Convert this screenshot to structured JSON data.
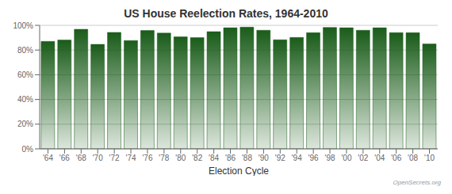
{
  "chart_data": {
    "type": "bar",
    "title": "US House Reelection Rates, 1964-2010",
    "xlabel": "Election Cycle",
    "categories": [
      "'64",
      "'66",
      "'68",
      "'70",
      "'72",
      "'74",
      "'76",
      "'78",
      "'80",
      "'82",
      "'84",
      "'86",
      "'88",
      "'90",
      "'92",
      "'94",
      "'96",
      "'98",
      "'00",
      "'02",
      "'04",
      "'06",
      "'08",
      "'10"
    ],
    "values": [
      87.0,
      88.1,
      96.8,
      84.6,
      94.3,
      87.7,
      95.8,
      93.7,
      90.7,
      90.1,
      94.9,
      98.0,
      98.5,
      96.0,
      88.3,
      90.2,
      94.0,
      98.3,
      98.0,
      96.0,
      98.0,
      94.1,
      94.0,
      85.0
    ],
    "color": "#1a5c1a",
    "ylim": [
      0,
      100
    ],
    "yticks": [
      {
        "value": 0,
        "label": "0%"
      },
      {
        "value": 20,
        "label": "20%"
      },
      {
        "value": 40,
        "label": "40%"
      },
      {
        "value": 60,
        "label": "60%"
      },
      {
        "value": 80,
        "label": "80%"
      },
      {
        "value": 100,
        "label": "100%"
      }
    ],
    "grid": true,
    "annotations": [
      "OpenSecrets.org"
    ]
  }
}
